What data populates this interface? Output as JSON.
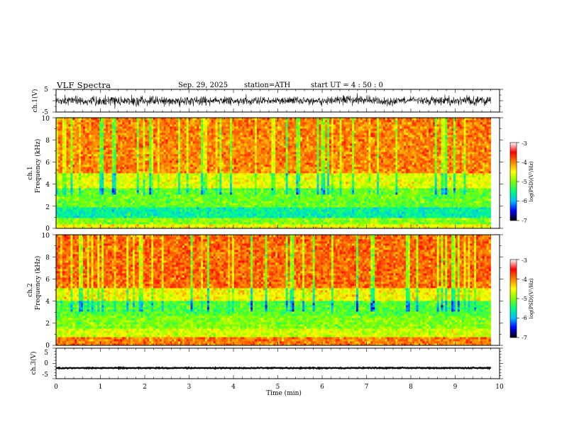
{
  "header": {
    "title": "VLF  Spectra",
    "date": "Sep. 29, 2025",
    "station": "station=ATH",
    "start": "start  UT  =   4  : 50 : 0"
  },
  "chart_data": [
    {
      "type": "line",
      "name": "ch1-waveform",
      "ylabel": "ch.1(V)",
      "ylim": [
        -5,
        5
      ],
      "yticks": [
        "5",
        "-5"
      ],
      "xlim": [
        0,
        10
      ],
      "envelope_x_min": [
        0,
        0.5,
        1.0,
        1.5,
        2.0,
        2.5,
        3.0,
        3.5,
        4.0,
        4.5,
        5.0,
        5.5,
        6.0,
        6.5,
        7.0,
        7.5,
        8.0,
        8.5,
        9.0,
        9.5,
        9.8
      ],
      "envelope_amplitude_v": [
        2.6,
        2.8,
        2.7,
        3.0,
        2.8,
        2.6,
        2.9,
        2.7,
        2.6,
        2.4,
        2.3,
        2.2,
        2.4,
        2.9,
        2.6,
        2.3,
        2.2,
        2.5,
        2.6,
        2.8,
        2.7
      ],
      "centre_v": [
        0,
        0,
        0,
        0,
        0,
        0,
        0,
        0,
        0,
        0,
        0,
        0,
        0,
        0.5,
        0.3,
        -0.8,
        0.4,
        0.2,
        0,
        0,
        0
      ]
    },
    {
      "type": "heatmap",
      "name": "ch1-spectrogram",
      "ylabel_line1": "ch.1",
      "ylabel_line2": "Frequency (kHz)",
      "ylim": [
        0,
        10
      ],
      "yticks": [
        "0",
        "2",
        "4",
        "6",
        "8",
        "10"
      ],
      "xlim": [
        0,
        10
      ],
      "data_end_min": 9.8,
      "colorbar": {
        "label": "log(PSD)(V²/Hz)",
        "range": [
          -7,
          -3
        ],
        "ticks": [
          "-3",
          "-4",
          "-5",
          "-6",
          "-7"
        ],
        "colors": [
          "#000000",
          "#0000ff",
          "#00bfff",
          "#00ff80",
          "#80ff00",
          "#ffff00",
          "#ff8000",
          "#ff0000",
          "#ffffff"
        ]
      },
      "band_levels_khz": [
        {
          "f0": 0.0,
          "f1": 0.4,
          "level": -4.5
        },
        {
          "f0": 0.4,
          "f1": 1.0,
          "level": -5.0
        },
        {
          "f0": 1.0,
          "f1": 2.0,
          "level": -5.6
        },
        {
          "f0": 2.0,
          "f1": 3.6,
          "level": -5.1
        },
        {
          "f0": 3.6,
          "f1": 5.0,
          "level": -4.6
        },
        {
          "f0": 5.0,
          "f1": 10.0,
          "level": -4.0
        }
      ]
    },
    {
      "type": "heatmap",
      "name": "ch2-spectrogram",
      "ylabel_line1": "ch.2",
      "ylabel_line2": "Frequency (kHz)",
      "ylim": [
        0,
        10
      ],
      "yticks": [
        "0",
        "2",
        "4",
        "6",
        "8",
        "10"
      ],
      "xlim": [
        0,
        10
      ],
      "data_end_min": 9.8,
      "colorbar": {
        "label": "log(PSD)(V²/Hz)",
        "range": [
          -7,
          -3
        ],
        "ticks": [
          "-3",
          "-4",
          "-5",
          "-6",
          "-7"
        ],
        "colors": [
          "#000000",
          "#0000ff",
          "#00bfff",
          "#00ff80",
          "#80ff00",
          "#ffff00",
          "#ff8000",
          "#ff0000",
          "#ffffff"
        ]
      },
      "band_levels_khz": [
        {
          "f0": 0.0,
          "f1": 0.8,
          "level": -4.0
        },
        {
          "f0": 0.8,
          "f1": 1.6,
          "level": -4.7
        },
        {
          "f0": 1.6,
          "f1": 2.6,
          "level": -5.0
        },
        {
          "f0": 2.6,
          "f1": 4.0,
          "level": -5.2
        },
        {
          "f0": 4.0,
          "f1": 5.2,
          "level": -4.5
        },
        {
          "f0": 5.2,
          "f1": 10.0,
          "level": -3.9
        }
      ]
    },
    {
      "type": "line",
      "name": "ch3-waveform",
      "ylabel": "ch.3(V)",
      "ylim": [
        -5,
        5
      ],
      "yticks": [
        "5",
        "0",
        "-5"
      ],
      "xlim": [
        0,
        10
      ],
      "level_v": -1.5,
      "amplitude_v": 0.3,
      "data_end_min": 9.8,
      "xlabel": "Time  (min)",
      "xticks": [
        "0",
        "1",
        "2",
        "3",
        "4",
        "5",
        "6",
        "7",
        "8",
        "9",
        "10"
      ]
    }
  ]
}
